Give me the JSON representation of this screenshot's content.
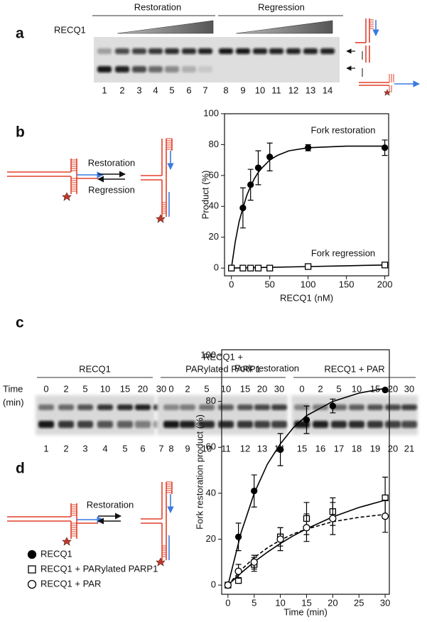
{
  "panels": {
    "a": {
      "label": "a",
      "protein": "RECQ1",
      "groups": [
        "Restoration",
        "Regression"
      ],
      "lanes": [
        1,
        2,
        3,
        4,
        5,
        6,
        7,
        8,
        9,
        10,
        11,
        12,
        13,
        14
      ]
    },
    "b": {
      "label": "b",
      "forward": "Restoration",
      "reverse": "Regression"
    },
    "c": {
      "label": "c",
      "time_label": [
        "Time",
        "(min)"
      ],
      "groups": [
        {
          "label": [
            "RECQ1"
          ],
          "times": [
            0,
            2,
            5,
            10,
            15,
            20,
            30
          ],
          "lanes": [
            1,
            2,
            3,
            4,
            5,
            6,
            7
          ]
        },
        {
          "label": [
            "RECQ1 +",
            "PARylated PARP1"
          ],
          "times": [
            0,
            2,
            5,
            10,
            15,
            20,
            30
          ],
          "lanes": [
            8,
            9,
            10,
            11,
            12,
            13,
            14
          ]
        },
        {
          "label": [
            "RECQ1 + PAR"
          ],
          "times": [
            0,
            2,
            5,
            10,
            15,
            20,
            30
          ],
          "lanes": [
            15,
            16,
            17,
            18,
            19,
            20,
            21
          ]
        }
      ]
    },
    "d": {
      "label": "d",
      "forward": "Restoration"
    }
  },
  "chart_data": [
    {
      "type": "scatter",
      "xlabel": "RECQ1 (nM)",
      "ylabel": "Product (%)",
      "xlim": [
        -9,
        205
      ],
      "ylim": [
        -5,
        100
      ],
      "xticks": [
        0,
        50,
        100,
        150,
        200
      ],
      "yticks": [
        0,
        20,
        40,
        60,
        80,
        100
      ],
      "series": [
        {
          "name": "Fork restoration",
          "color": "#000000",
          "marker": "filled-circle",
          "line_style": "solid",
          "x": [
            0,
            15,
            25,
            35,
            50,
            100,
            200
          ],
          "values": [
            0,
            39,
            54,
            65,
            72,
            78,
            78
          ],
          "errors": [
            0,
            13,
            10,
            11,
            9,
            2,
            5
          ],
          "fit": {
            "x": [
              0,
              5,
              10,
              15,
              20,
              25,
              30,
              35,
              40,
              50,
              60,
              75,
              100,
              150,
              200
            ],
            "values": [
              0,
              17,
              30,
              39,
              47,
              53,
              58,
              62,
              65,
              70,
              73,
              76,
              78,
              79,
              79
            ]
          }
        },
        {
          "name": "Fork regression",
          "color": "#000000",
          "marker": "open-square",
          "line_style": "solid",
          "x": [
            0,
            15,
            25,
            35,
            50,
            100,
            200
          ],
          "values": [
            0,
            0,
            0,
            0,
            0,
            1,
            2
          ],
          "errors": [
            0,
            0,
            0,
            0,
            0,
            0,
            1.5
          ],
          "fit": {
            "x": [
              0,
              50,
              100,
              150,
              200
            ],
            "values": [
              0,
              0.5,
              1,
              1.5,
              2
            ]
          }
        }
      ]
    },
    {
      "type": "scatter",
      "annotation": "Fork restoration",
      "xlabel": "Time (min)",
      "ylabel": "Fork restoration product (%)",
      "xlim": [
        -1.2,
        30.8
      ],
      "ylim": [
        -4,
        102.5
      ],
      "xticks": [
        0,
        5,
        10,
        15,
        20,
        25,
        30
      ],
      "yticks": [
        0,
        20,
        40,
        60,
        80,
        100
      ],
      "series": [
        {
          "name": "RECQ1",
          "color": "#000000",
          "marker": "filled-circle",
          "line_style": "solid",
          "x": [
            0,
            2,
            5,
            10,
            15,
            20,
            30
          ],
          "values": [
            0,
            21,
            41,
            59,
            72,
            78,
            85
          ],
          "errors": [
            0,
            6,
            7,
            7,
            6,
            3,
            0
          ],
          "fit": {
            "x": [
              0,
              2.5,
              5,
              7.5,
              10,
              12.5,
              15,
              20,
              25,
              30
            ],
            "values": [
              0,
              22.8,
              39.9,
              52.6,
              61.5,
              68.6,
              73.8,
              80.0,
              83.6,
              85.7
            ]
          }
        },
        {
          "name": "RECQ1 + PARylated PARP1",
          "color": "#000000",
          "marker": "open-square",
          "line_style": "solid",
          "x": [
            0,
            2,
            5,
            10,
            15,
            20,
            30
          ],
          "values": [
            0,
            2,
            9,
            21,
            29,
            32,
            38
          ],
          "errors": [
            0,
            1,
            3,
            4,
            7,
            6,
            9
          ],
          "fit": {
            "x": [
              0,
              2.5,
              5,
              7.5,
              10,
              12.5,
              15,
              20,
              25,
              30
            ],
            "values": [
              0,
              5.3,
              10.1,
              14.3,
              18.1,
              21.5,
              24.5,
              29.7,
              33.8,
              37.0
            ]
          }
        },
        {
          "name": "RECQ1 + PAR",
          "color": "#000000",
          "marker": "open-circle",
          "line_style": "dashed",
          "x": [
            0,
            2,
            5,
            10,
            15,
            20,
            30
          ],
          "values": [
            0,
            6,
            10,
            20,
            25,
            29,
            30
          ],
          "errors": [
            0,
            3,
            3,
            5,
            6,
            7,
            7
          ],
          "fit": {
            "x": [
              0,
              2.5,
              5,
              7.5,
              10,
              12.5,
              15,
              20,
              25,
              30
            ],
            "values": [
              0,
              6.6,
              11.9,
              16.2,
              19.6,
              22.3,
              24.4,
              27.6,
              29.5,
              30.8
            ]
          }
        }
      ]
    }
  ]
}
